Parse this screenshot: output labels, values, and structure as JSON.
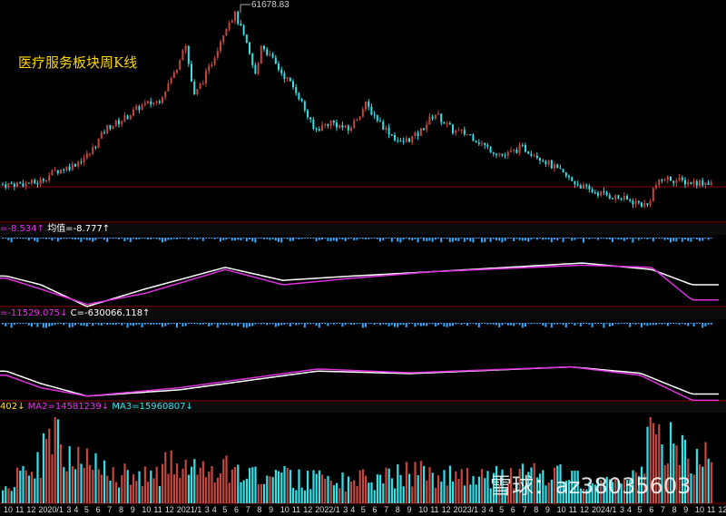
{
  "title": "医疗服务板块周K线",
  "max_label": "61678.83",
  "panel1": {
    "v1": "=-8.534↑",
    "v2": "均值=-8.777↑"
  },
  "panel2": {
    "v1": "=-11529.075↓",
    "v2": "C=-630066.118↑"
  },
  "volume": {
    "v1": "402↓",
    "ma2": "MA2=14581239↓",
    "ma3": "MA3=15960807↓"
  },
  "watermark": "雪球：az38035603",
  "colors": {
    "up": "#c4473f",
    "down": "#33e0e8",
    "title": "#ffd700",
    "grid": "#8b0000",
    "line_white": "#ffffff",
    "line_magenta": "#e030e0"
  },
  "chart_data": {
    "type": "candlestick",
    "x_tick_labels": [
      "10",
      "11",
      "12",
      "2020/1",
      "3",
      "4",
      "5",
      "6",
      "7",
      "8",
      "9",
      "10",
      "11",
      "12",
      "2021/1",
      "3",
      "4",
      "5",
      "6",
      "7",
      "8",
      "9",
      "10",
      "11",
      "12",
      "2022/1",
      "3",
      "4",
      "5",
      "6",
      "7",
      "8",
      "9",
      "10",
      "11",
      "12",
      "2023/1",
      "3",
      "4",
      "5",
      "6",
      "7",
      "8",
      "9",
      "10",
      "11",
      "12",
      "2024/1",
      "3",
      "4",
      "5",
      "6",
      "7",
      "8",
      "9",
      "10",
      "11",
      "12"
    ],
    "x_tick_month_index": [
      0,
      1,
      2,
      3,
      5,
      6,
      7,
      8,
      9,
      10,
      11,
      12,
      13,
      14,
      15,
      17,
      18,
      19,
      20,
      21,
      22,
      23,
      24,
      25,
      26,
      27,
      29,
      30,
      31,
      32,
      33,
      34,
      35,
      36,
      37,
      38,
      39,
      41,
      42,
      43,
      44,
      45,
      46,
      47,
      48,
      49,
      50,
      51,
      53,
      54,
      55,
      56,
      57,
      58,
      59,
      60,
      61,
      62
    ],
    "price_keyframes_month_close": [
      [
        0,
        26050
      ],
      [
        3,
        26400
      ],
      [
        4.5,
        28800
      ],
      [
        6,
        30000
      ],
      [
        7.5,
        32400
      ],
      [
        9,
        37900
      ],
      [
        10.5,
        39800
      ],
      [
        12,
        42500
      ],
      [
        13.5,
        43500
      ],
      [
        15,
        49800
      ],
      [
        15.8,
        56200
      ],
      [
        16.6,
        44400
      ],
      [
        18,
        50800
      ],
      [
        19.5,
        60000
      ],
      [
        20.2,
        61678
      ],
      [
        21,
        56500
      ],
      [
        22,
        48300
      ],
      [
        22.4,
        55600
      ],
      [
        24,
        50100
      ],
      [
        25.5,
        45600
      ],
      [
        27,
        37400
      ],
      [
        28.5,
        39200
      ],
      [
        30,
        37400
      ],
      [
        31.5,
        42800
      ],
      [
        33,
        38300
      ],
      [
        34.5,
        34700
      ],
      [
        36,
        36500
      ],
      [
        37.5,
        41000
      ],
      [
        39,
        37400
      ],
      [
        40.5,
        36500
      ],
      [
        42,
        33800
      ],
      [
        43.5,
        32000
      ],
      [
        45,
        33800
      ],
      [
        46.5,
        32000
      ],
      [
        48,
        29300
      ],
      [
        49.5,
        26600
      ],
      [
        51,
        24700
      ],
      [
        52.5,
        23800
      ],
      [
        54,
        22900
      ],
      [
        56,
        21600
      ],
      [
        56.5,
        25600
      ],
      [
        57.5,
        27400
      ],
      [
        59.5,
        26500
      ]
    ],
    "indicator1": {
      "white": [
        [
          0,
          -3
        ],
        [
          3,
          -5
        ],
        [
          7,
          -10
        ],
        [
          12,
          -6
        ],
        [
          19,
          -1
        ],
        [
          24,
          -4
        ],
        [
          30,
          -3
        ],
        [
          37,
          -2
        ],
        [
          50,
          0
        ],
        [
          56,
          -1.5
        ],
        [
          59.5,
          -5
        ]
      ],
      "magenta": [
        [
          0,
          -3.5
        ],
        [
          3,
          -6
        ],
        [
          7,
          -9.5
        ],
        [
          12,
          -7
        ],
        [
          19,
          -1.5
        ],
        [
          24,
          -5
        ],
        [
          30,
          -3.5
        ],
        [
          37,
          -2
        ],
        [
          50,
          -0.5
        ],
        [
          56,
          -1
        ],
        [
          59.5,
          -8.5
        ]
      ]
    },
    "indicator2": {
      "white": [
        [
          0,
          -2
        ],
        [
          3,
          -5
        ],
        [
          7,
          -8
        ],
        [
          15,
          -6.5
        ],
        [
          27,
          -2
        ],
        [
          35,
          -2.6
        ],
        [
          49,
          -1
        ],
        [
          55,
          -2.5
        ],
        [
          59.5,
          -7.5
        ]
      ],
      "magenta": [
        [
          0,
          -3
        ],
        [
          3,
          -6
        ],
        [
          7,
          -8
        ],
        [
          15,
          -6
        ],
        [
          27,
          -1.5
        ],
        [
          35,
          -2.4
        ],
        [
          49,
          -1
        ],
        [
          55,
          -3
        ],
        [
          59.5,
          -9
        ]
      ]
    },
    "volume_keyframes": [
      [
        0,
        4
      ],
      [
        3,
        8
      ],
      [
        4,
        18
      ],
      [
        6,
        10
      ],
      [
        9,
        7
      ],
      [
        12,
        6
      ],
      [
        15,
        9
      ],
      [
        18,
        8
      ],
      [
        21,
        7
      ],
      [
        24,
        6
      ],
      [
        30,
        5
      ],
      [
        36,
        7
      ],
      [
        42,
        6
      ],
      [
        48,
        7
      ],
      [
        54,
        5
      ],
      [
        56,
        14
      ],
      [
        57,
        18
      ],
      [
        59.5,
        10
      ]
    ]
  }
}
